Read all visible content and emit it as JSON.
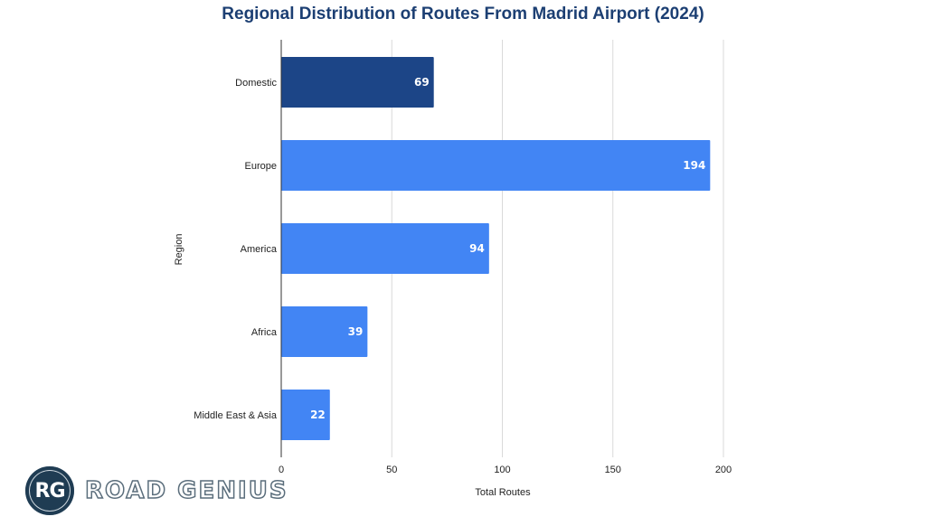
{
  "chart_data": {
    "type": "bar",
    "orientation": "horizontal",
    "title": "Regional Distribution of Routes From Madrid Airport (2024)",
    "xlabel": "Total Routes",
    "ylabel": "Region",
    "categories": [
      "Domestic",
      "Europe",
      "America",
      "Africa",
      "Middle East & Asia"
    ],
    "values": [
      69,
      194,
      94,
      39,
      22
    ],
    "bar_colors": [
      "#1c4587",
      "#4285f4",
      "#4285f4",
      "#4285f4",
      "#4285f4"
    ],
    "xlim": [
      0,
      200
    ],
    "xticks": [
      0,
      50,
      100,
      150,
      200
    ],
    "grid": true,
    "data_labels": true
  },
  "logo": {
    "initials": "RG",
    "text": "ROAD GENIUS"
  }
}
